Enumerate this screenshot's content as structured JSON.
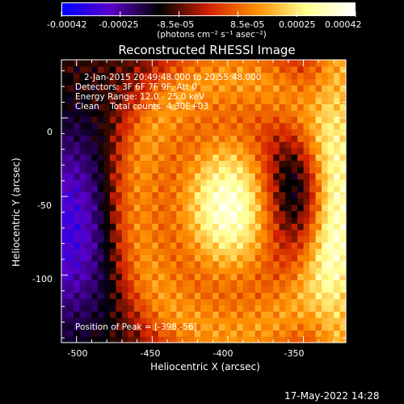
{
  "colorbar": {
    "tick_labels": [
      "-0.00042",
      "-0.00025",
      "-8.5e-05",
      "8.5e-05",
      "0.00025",
      "0.00042"
    ],
    "unit": "(photons cm⁻² s⁻¹ asec⁻²)",
    "colors": [
      "#0000ff",
      "#5a00c8",
      "#000000",
      "#d22000",
      "#ff9000",
      "#ffff90",
      "#ffffff"
    ]
  },
  "chart_data": {
    "type": "heatmap",
    "title": "Reconstructed RHESSI Image",
    "xlabel": "Heliocentric X (arcsec)",
    "ylabel": "Heliocentric Y (arcsec)",
    "xlim": [
      -510,
      -322
    ],
    "ylim": [
      -143,
      37
    ],
    "x_ticks": [
      -500,
      -450,
      -400,
      -350
    ],
    "y_ticks": [
      0,
      -50,
      -100
    ],
    "value_range": [
      -0.00042,
      0.00042
    ],
    "peak": [
      -398,
      -56
    ]
  },
  "annotations": {
    "time_range": "2-Jan-2015 20:49:48.000 to 20:55:48.000",
    "detectors": "Detectors: 3F 6F 7F 9F, Att 0",
    "energy_range": "Energy Range: 12.0 - 25.0 keV",
    "clean_counts": "Clean    Total counts: 4.30E+03",
    "peak_position": "Position of Peak = [-398,-56]"
  },
  "timestamp": "17-May-2022 14:28"
}
